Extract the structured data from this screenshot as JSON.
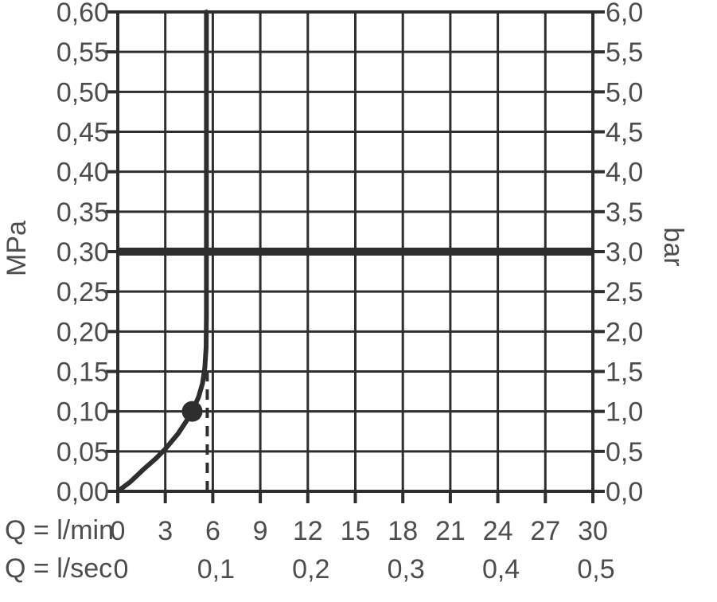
{
  "figure": {
    "background_color": "#ffffff",
    "line_color": "#2e2e2e",
    "label_color": "#4d4d4d"
  },
  "chart_data": {
    "type": "line",
    "title": "",
    "grid": {
      "on": true,
      "x_step_lmin": 3,
      "y_step_mpa": 0.05
    },
    "left_axis": {
      "label": "MPa",
      "range": [
        0,
        0.6
      ],
      "tick_values": [
        0.6,
        0.55,
        0.5,
        0.45,
        0.4,
        0.35,
        0.3,
        0.25,
        0.2,
        0.15,
        0.1,
        0.05,
        0.0
      ],
      "tick_labels": [
        "0,60",
        "0,55",
        "0,50",
        "0,45",
        "0,40",
        "0,35",
        "0,30",
        "0,25",
        "0,20",
        "0,15",
        "0,10",
        "0,05",
        "0,00"
      ]
    },
    "right_axis": {
      "label": "bar",
      "range": [
        0,
        6
      ],
      "tick_values": [
        0.6,
        0.55,
        0.5,
        0.45,
        0.4,
        0.35,
        0.3,
        0.25,
        0.2,
        0.15,
        0.1,
        0.05,
        0.0
      ],
      "tick_labels": [
        "6,0",
        "5,5",
        "5,0",
        "4,5",
        "4,0",
        "3,5",
        "3,0",
        "2,5",
        "2,0",
        "1,5",
        "1,0",
        "0,5",
        "0,0"
      ]
    },
    "bottom_axis_lmin": {
      "label": "Q = l/min",
      "range": [
        0,
        30
      ],
      "tick_values": [
        0,
        3,
        6,
        9,
        12,
        15,
        18,
        21,
        24,
        27,
        30
      ],
      "tick_labels": [
        "0",
        "3",
        "6",
        "9",
        "12",
        "15",
        "18",
        "21",
        "24",
        "27",
        "30"
      ]
    },
    "bottom_axis_lsec": {
      "label": "Q = l/sec",
      "range": [
        0,
        0.5
      ],
      "tick_values": [
        0,
        6,
        12,
        18,
        24,
        30
      ],
      "tick_labels": [
        "0",
        "0,1",
        "0,2",
        "0,3",
        "0,4",
        "0,5"
      ]
    },
    "series": [
      {
        "name": "flow-pressure-curve",
        "points_lmin_mpa": [
          [
            0.0,
            0.0
          ],
          [
            0.8,
            0.012
          ],
          [
            1.6,
            0.027
          ],
          [
            2.4,
            0.041
          ],
          [
            3.0,
            0.053
          ],
          [
            3.8,
            0.072
          ],
          [
            4.4,
            0.09
          ],
          [
            4.7,
            0.1
          ],
          [
            5.1,
            0.118
          ],
          [
            5.35,
            0.135
          ],
          [
            5.5,
            0.155
          ],
          [
            5.58,
            0.18
          ],
          [
            5.6,
            0.22
          ],
          [
            5.6,
            0.6
          ]
        ]
      }
    ],
    "marker_point": {
      "x_lmin": 4.7,
      "y_mpa": 0.1
    },
    "reference_line": {
      "y_mpa": 0.3,
      "y_bar": 3.0
    },
    "dashed_guide": {
      "x_lmin": 5.65,
      "y_from_mpa": 0.0,
      "y_to_mpa": 0.156
    }
  }
}
